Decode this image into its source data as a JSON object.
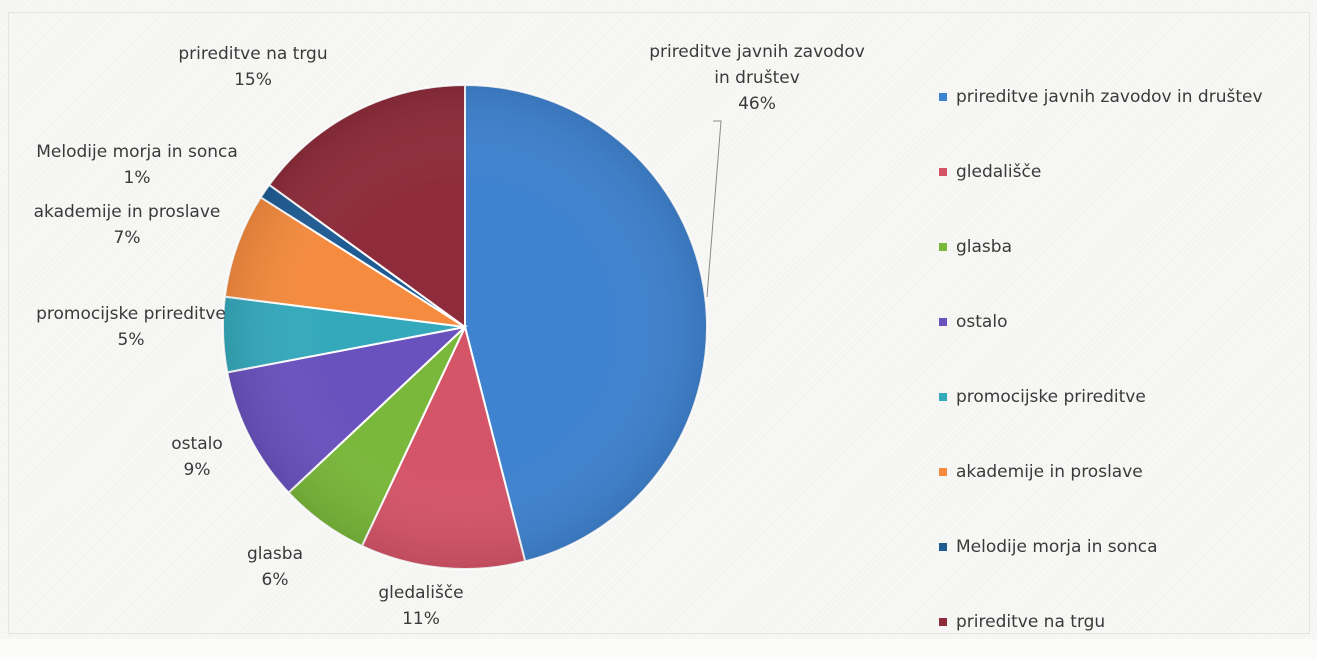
{
  "chart_data": {
    "type": "pie",
    "title": "",
    "legend_position": "right",
    "slices": [
      {
        "label_lines": [
          "prireditve javnih zavodov",
          "in društev"
        ],
        "legend": "prireditve javnih zavodov in društev",
        "value": 46,
        "display": "46%",
        "color": "#3f82cf"
      },
      {
        "label_lines": [
          "gledališče"
        ],
        "legend": "gledališče",
        "value": 11,
        "display": "11%",
        "color": "#d45468"
      },
      {
        "label_lines": [
          "glasba"
        ],
        "legend": "glasba",
        "value": 6,
        "display": "6%",
        "color": "#79b83a"
      },
      {
        "label_lines": [
          "ostalo"
        ],
        "legend": "ostalo",
        "value": 9,
        "display": "9%",
        "color": "#6a52be"
      },
      {
        "label_lines": [
          "promocijske prireditve"
        ],
        "legend": "promocijske prireditve",
        "value": 5,
        "display": "5%",
        "color": "#35a9bc"
      },
      {
        "label_lines": [
          "akademije in proslave"
        ],
        "legend": "akademije in proslave",
        "value": 7,
        "display": "7%",
        "color": "#f58b3e"
      },
      {
        "label_lines": [
          "Melodije morja in sonca"
        ],
        "legend": "Melodije morja in sonca",
        "value": 1,
        "display": "1%",
        "color": "#1f5c94"
      },
      {
        "label_lines": [
          "prireditve na trgu"
        ],
        "legend": "prireditve na trgu",
        "value": 15,
        "display": "15%",
        "color": "#8e2c3b"
      }
    ]
  }
}
